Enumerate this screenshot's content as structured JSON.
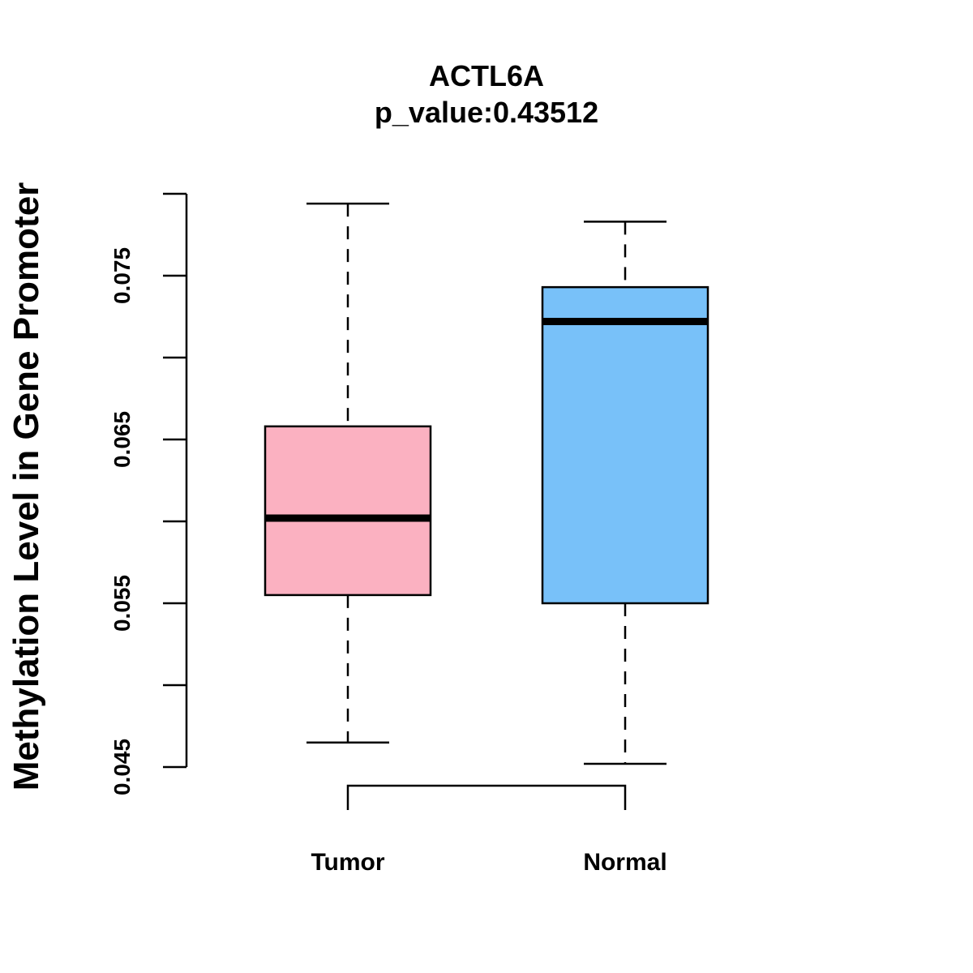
{
  "chart_data": {
    "type": "box",
    "title": "ACTL6A",
    "subtitle": "p_value:0.43512",
    "xlabel": "",
    "ylabel": "Methylation Level in Gene Promoter",
    "ylim": [
      0.045,
      0.08
    ],
    "yticks": [
      0.045,
      0.05,
      0.055,
      0.06,
      0.065,
      0.07,
      0.075,
      0.08
    ],
    "ytick_labels": [
      "0.045",
      "",
      "0.055",
      "",
      "0.065",
      "",
      "0.075",
      ""
    ],
    "categories": [
      "Tumor",
      "Normal"
    ],
    "series": [
      {
        "name": "Tumor",
        "color": "#FBB1C1",
        "whisker_low": 0.0465,
        "q1": 0.0555,
        "median": 0.0602,
        "q3": 0.0658,
        "whisker_high": 0.0794
      },
      {
        "name": "Normal",
        "color": "#78C1F9",
        "whisker_low": 0.0452,
        "q1": 0.055,
        "median": 0.0722,
        "q3": 0.0743,
        "whisker_high": 0.0783
      }
    ],
    "grid": false,
    "comparison_bracket": [
      "Tumor",
      "Normal"
    ]
  }
}
